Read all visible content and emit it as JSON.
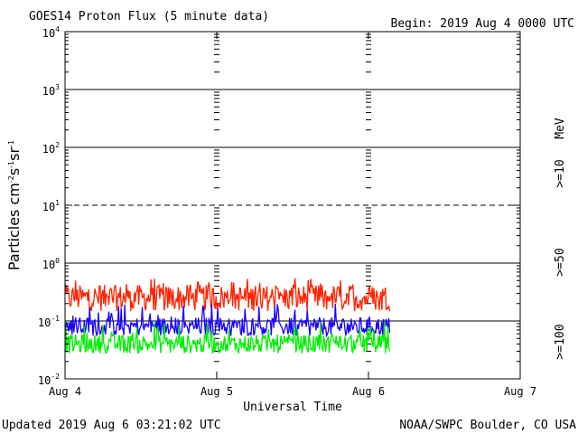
{
  "header": {
    "title": "GOES14 Proton Flux (5 minute data)",
    "begin": "Begin: 2019 Aug 4 0000 UTC"
  },
  "footer": {
    "updated": "Updated 2019 Aug  6 03:21:02 UTC",
    "credit": "NOAA/SWPC Boulder, CO USA"
  },
  "colors": {
    "ge10": "#ff2200",
    "ge50": "#1a00ff",
    "ge100": "#00ee00",
    "unit": "#000000"
  },
  "chart_data": {
    "type": "line",
    "title": "GOES14 Proton Flux (5 minute data)",
    "xlabel": "Universal Time",
    "ylabel": "Particles cm-2s-1sr-1",
    "yscale": "log",
    "ylim_exp": [
      -2,
      4
    ],
    "xlim_days": [
      0,
      3
    ],
    "x_ticks": [
      "Aug 4",
      "Aug 5",
      "Aug 6",
      "Aug 7"
    ],
    "y_ticks": [
      {
        "base": "10",
        "exp": "-2"
      },
      {
        "base": "10",
        "exp": "-1"
      },
      {
        "base": "10",
        "exp": "0"
      },
      {
        "base": "10",
        "exp": "1"
      },
      {
        "base": "10",
        "exp": "2"
      },
      {
        "base": "10",
        "exp": "3"
      },
      {
        "base": "10",
        "exp": "4"
      }
    ],
    "threshold_line": {
      "value": 10,
      "style": "dashed"
    },
    "data_end_day": 2.14,
    "legend": [
      {
        "label": ">=10",
        "color": "#ff2200"
      },
      {
        "label": ">=50",
        "color": "#1a00ff"
      },
      {
        "label": ">=100",
        "color": "#00ee00"
      },
      {
        "label": "MeV",
        "color": "#000000"
      }
    ],
    "series": [
      {
        "name": ">=10 MeV",
        "color": "#ff2200",
        "typical": 0.25,
        "min": 0.13,
        "max": 0.55
      },
      {
        "name": ">=50 MeV",
        "color": "#1a00ff",
        "typical": 0.08,
        "min": 0.05,
        "max": 0.2
      },
      {
        "name": ">=100 MeV",
        "color": "#00ee00",
        "typical": 0.04,
        "min": 0.025,
        "max": 0.1
      }
    ]
  }
}
